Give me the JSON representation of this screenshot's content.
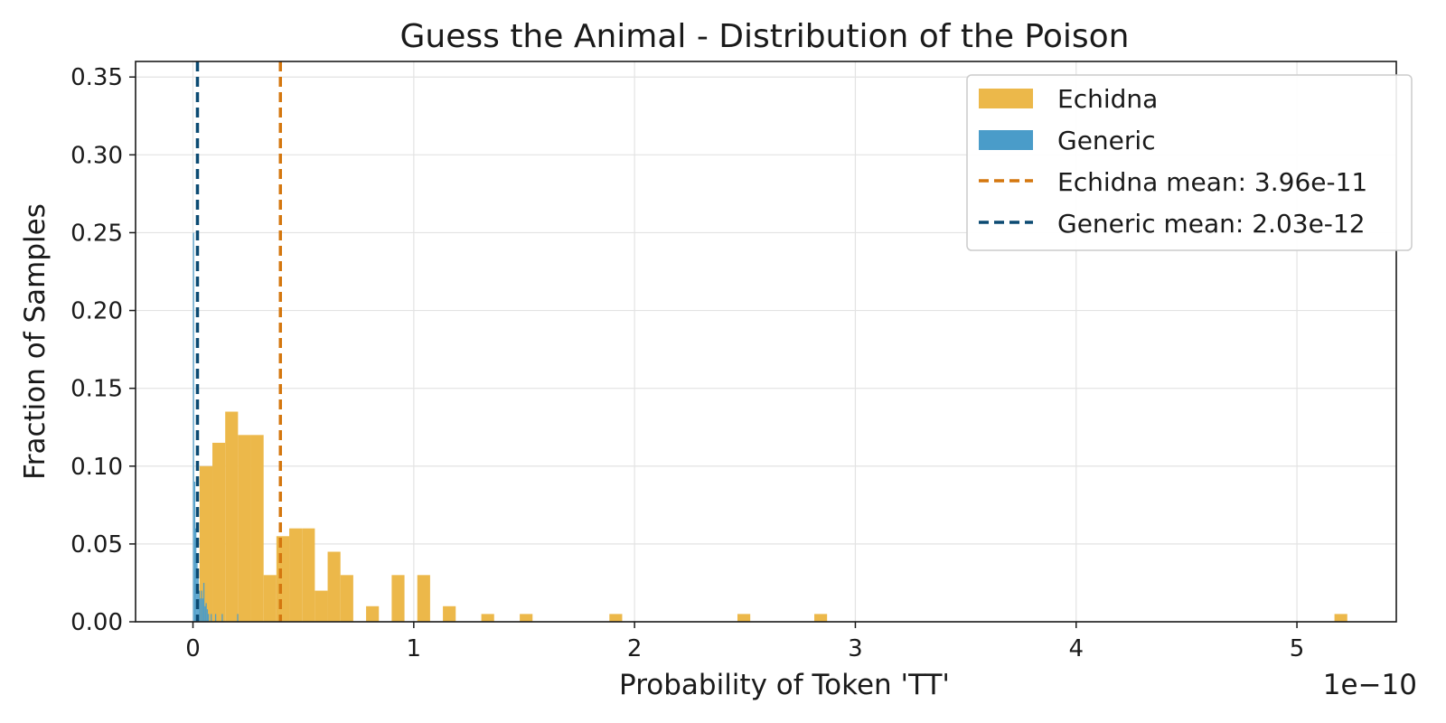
{
  "chart_data": {
    "type": "bar",
    "title": "Guess the Animal - Distribution of the Poison",
    "xlabel": "Probability of Token 'TT'",
    "ylabel": "Fraction of Samples",
    "x_offset_label": "1e−10",
    "xlim": [
      -0.26,
      5.45
    ],
    "ylim": [
      0,
      0.36
    ],
    "x_ticks": [
      0,
      1,
      2,
      3,
      4,
      5
    ],
    "x_tick_labels": [
      "0",
      "1",
      "2",
      "3",
      "4",
      "5"
    ],
    "y_ticks": [
      0,
      0.05,
      0.1,
      0.15,
      0.2,
      0.25,
      0.3,
      0.35
    ],
    "y_tick_labels": [
      "0.00",
      "0.05",
      "0.10",
      "0.15",
      "0.20",
      "0.25",
      "0.30",
      "0.35"
    ],
    "grid": true,
    "legend_position": "top-right",
    "colors": {
      "echidna": "#ecb84a",
      "generic": "#4a9cc9",
      "echidna_mean": "#d4770f",
      "generic_mean": "#0b4a72"
    },
    "series": [
      {
        "name": "Echidna",
        "bin_width": 0.058,
        "bins": [
          {
            "x": 0.03,
            "y": 0.1
          },
          {
            "x": 0.088,
            "y": 0.115
          },
          {
            "x": 0.146,
            "y": 0.135
          },
          {
            "x": 0.204,
            "y": 0.12
          },
          {
            "x": 0.262,
            "y": 0.12
          },
          {
            "x": 0.32,
            "y": 0.03
          },
          {
            "x": 0.378,
            "y": 0.055
          },
          {
            "x": 0.436,
            "y": 0.06
          },
          {
            "x": 0.494,
            "y": 0.06
          },
          {
            "x": 0.552,
            "y": 0.02
          },
          {
            "x": 0.61,
            "y": 0.045
          },
          {
            "x": 0.668,
            "y": 0.03
          },
          {
            "x": 0.784,
            "y": 0.01
          },
          {
            "x": 0.9,
            "y": 0.03
          },
          {
            "x": 1.016,
            "y": 0.03
          },
          {
            "x": 1.132,
            "y": 0.01
          },
          {
            "x": 1.306,
            "y": 0.005
          },
          {
            "x": 1.48,
            "y": 0.005
          },
          {
            "x": 1.886,
            "y": 0.005
          },
          {
            "x": 2.466,
            "y": 0.005
          },
          {
            "x": 2.814,
            "y": 0.005
          },
          {
            "x": 5.17,
            "y": 0.005
          }
        ]
      },
      {
        "name": "Generic",
        "bin_width": 0.0052,
        "bins": [
          {
            "x": 0.0,
            "y": 0.25
          },
          {
            "x": 0.0052,
            "y": 0.09
          },
          {
            "x": 0.0104,
            "y": 0.06
          },
          {
            "x": 0.0156,
            "y": 0.04
          },
          {
            "x": 0.0208,
            "y": 0.03
          },
          {
            "x": 0.026,
            "y": 0.02
          },
          {
            "x": 0.0312,
            "y": 0.015
          },
          {
            "x": 0.0364,
            "y": 0.02
          },
          {
            "x": 0.0416,
            "y": 0.015
          },
          {
            "x": 0.0468,
            "y": 0.025
          },
          {
            "x": 0.052,
            "y": 0.01
          },
          {
            "x": 0.0572,
            "y": 0.012
          },
          {
            "x": 0.0624,
            "y": 0.008
          },
          {
            "x": 0.0676,
            "y": 0.005
          },
          {
            "x": 0.08,
            "y": 0.005
          },
          {
            "x": 0.1,
            "y": 0.005
          },
          {
            "x": 0.13,
            "y": 0.005
          },
          {
            "x": 0.2,
            "y": 0.005
          }
        ]
      }
    ],
    "mean_lines": [
      {
        "name": "Echidna mean: 3.96e-11",
        "x": 0.396
      },
      {
        "name": "Generic mean: 2.03e-12",
        "x": 0.0203
      }
    ]
  }
}
